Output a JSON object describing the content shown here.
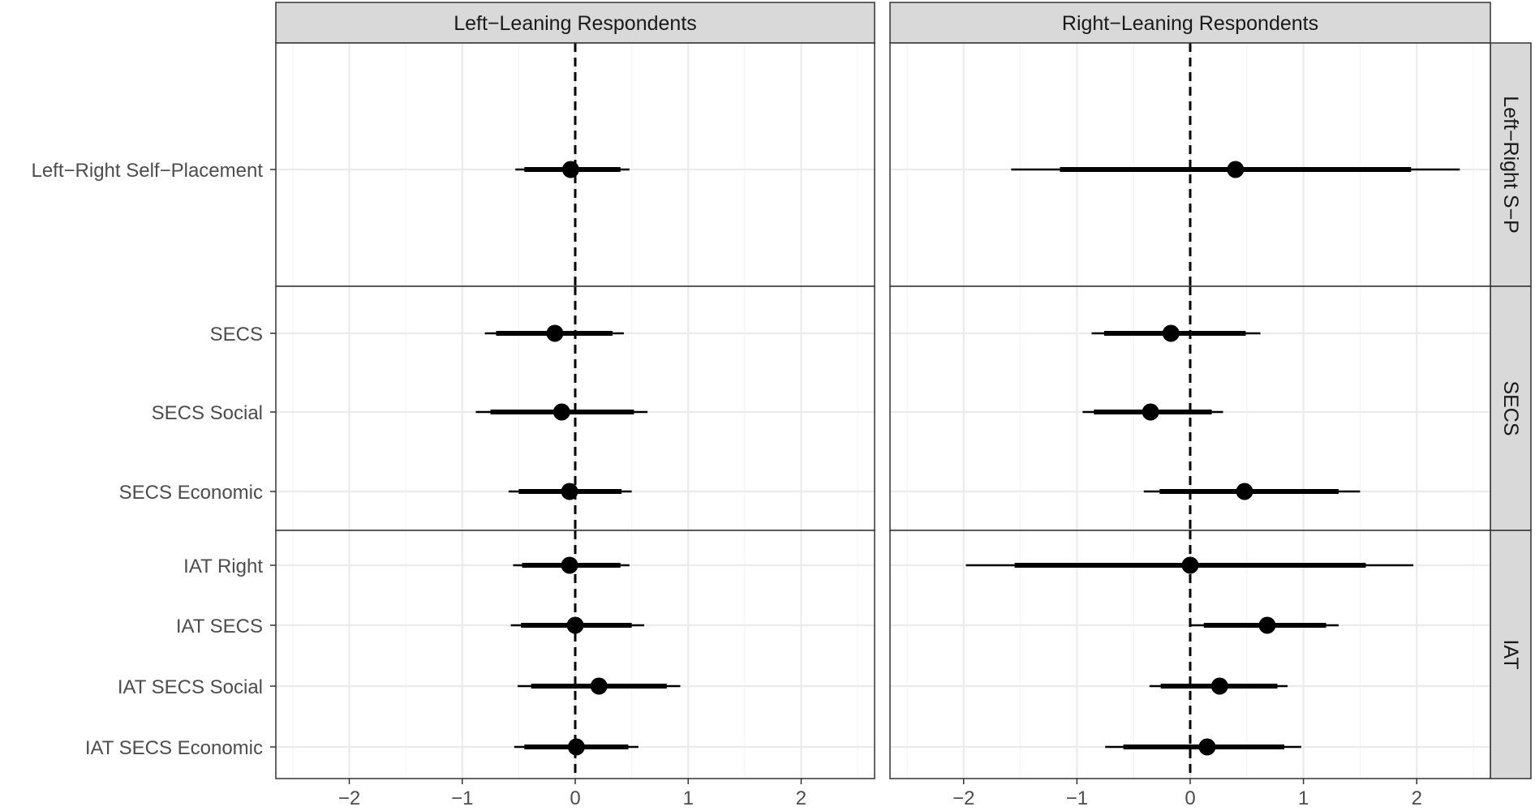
{
  "chart_data": {
    "type": "forest",
    "columns": [
      "Left−Leaning Respondents",
      "Right−Leaning Respondents"
    ],
    "rows": [
      {
        "label": "Left−Right S−P",
        "items": [
          "Left−Right Self−Placement"
        ]
      },
      {
        "label": "SECS",
        "items": [
          "SECS",
          "SECS Social",
          "SECS Economic"
        ]
      },
      {
        "label": "IAT",
        "items": [
          "IAT Right",
          "IAT SECS",
          "IAT SECS Social",
          "IAT SECS Economic"
        ]
      }
    ],
    "x_ticks": [
      -2,
      -1,
      0,
      1,
      2
    ],
    "x_tick_labels": [
      "−2",
      "−1",
      "0",
      "1",
      "2"
    ],
    "xlim": [
      -2.65,
      2.65
    ],
    "reference_line": 0,
    "grid": true,
    "estimates": {
      "Left−Leaning Respondents": [
        {
          "item": "Left−Right Self−Placement",
          "est": -0.04,
          "inner": [
            -0.45,
            0.4
          ],
          "outer": [
            -0.53,
            0.48
          ]
        },
        {
          "item": "SECS",
          "est": -0.18,
          "inner": [
            -0.7,
            0.33
          ],
          "outer": [
            -0.8,
            0.43
          ]
        },
        {
          "item": "SECS Social",
          "est": -0.12,
          "inner": [
            -0.75,
            0.52
          ],
          "outer": [
            -0.88,
            0.64
          ]
        },
        {
          "item": "SECS Economic",
          "est": -0.05,
          "inner": [
            -0.5,
            0.41
          ],
          "outer": [
            -0.59,
            0.5
          ]
        },
        {
          "item": "IAT Right",
          "est": -0.05,
          "inner": [
            -0.47,
            0.4
          ],
          "outer": [
            -0.55,
            0.48
          ]
        },
        {
          "item": "IAT SECS",
          "est": 0.0,
          "inner": [
            -0.48,
            0.5
          ],
          "outer": [
            -0.57,
            0.61
          ]
        },
        {
          "item": "IAT SECS Social",
          "est": 0.21,
          "inner": [
            -0.39,
            0.81
          ],
          "outer": [
            -0.51,
            0.93
          ]
        },
        {
          "item": "IAT SECS Economic",
          "est": 0.01,
          "inner": [
            -0.45,
            0.47
          ],
          "outer": [
            -0.54,
            0.56
          ]
        }
      ],
      "Right−Leaning Respondents": [
        {
          "item": "Left−Right Self−Placement",
          "est": 0.4,
          "inner": [
            -1.15,
            1.95
          ],
          "outer": [
            -1.58,
            2.38
          ]
        },
        {
          "item": "SECS",
          "est": -0.17,
          "inner": [
            -0.76,
            0.49
          ],
          "outer": [
            -0.87,
            0.62
          ]
        },
        {
          "item": "SECS Social",
          "est": -0.35,
          "inner": [
            -0.85,
            0.19
          ],
          "outer": [
            -0.95,
            0.29
          ]
        },
        {
          "item": "SECS Economic",
          "est": 0.48,
          "inner": [
            -0.27,
            1.31
          ],
          "outer": [
            -0.41,
            1.5
          ]
        },
        {
          "item": "IAT Right",
          "est": 0.0,
          "inner": [
            -1.55,
            1.55
          ],
          "outer": [
            -1.98,
            1.97
          ]
        },
        {
          "item": "IAT SECS",
          "est": 0.68,
          "inner": [
            0.12,
            1.2
          ],
          "outer": [
            0.0,
            1.31
          ]
        },
        {
          "item": "IAT SECS Social",
          "est": 0.26,
          "inner": [
            -0.26,
            0.77
          ],
          "outer": [
            -0.36,
            0.86
          ]
        },
        {
          "item": "IAT SECS Economic",
          "est": 0.15,
          "inner": [
            -0.59,
            0.83
          ],
          "outer": [
            -0.75,
            0.98
          ]
        }
      ]
    }
  },
  "colors": {
    "strip_fill": "#d9d9d9",
    "grid_major": "#ebebeb",
    "grid_minor": "#f5f5f5",
    "panel_border": "#333333",
    "mark": "#000000"
  }
}
